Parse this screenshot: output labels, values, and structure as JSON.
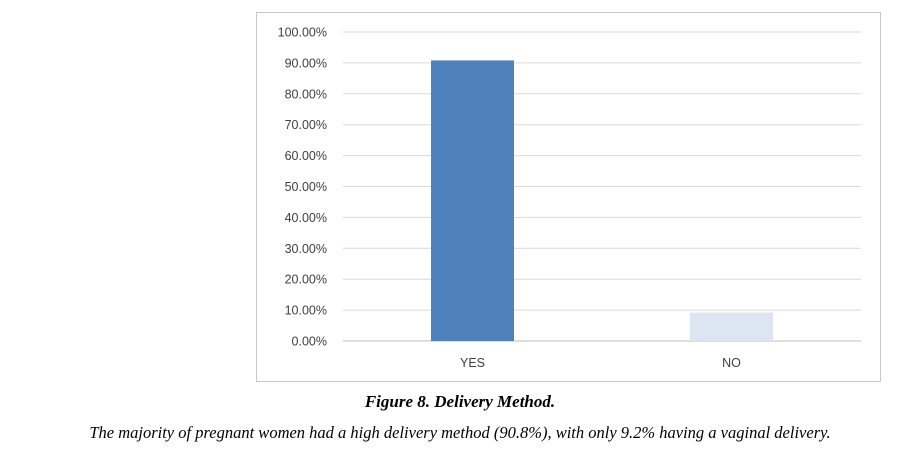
{
  "figure": {
    "title": "Figure 8. Delivery Method.",
    "caption": "The majority of pregnant women had a high delivery method (90.8%), with only 9.2% having a vaginal delivery."
  },
  "chart_data": {
    "type": "bar",
    "categories": [
      "YES",
      "NO"
    ],
    "values": [
      90.8,
      9.2
    ],
    "bar_colors": [
      "#4f81bd",
      "#dce6f2"
    ],
    "ylim": [
      0,
      100
    ],
    "yticks": [
      0,
      10,
      20,
      30,
      40,
      50,
      60,
      70,
      80,
      90,
      100
    ],
    "ytick_labels": [
      "0.00%",
      "10.00%",
      "20.00%",
      "30.00%",
      "40.00%",
      "50.00%",
      "60.00%",
      "70.00%",
      "80.00%",
      "90.00%",
      "100.00%"
    ],
    "grid": true,
    "legend": "none"
  }
}
